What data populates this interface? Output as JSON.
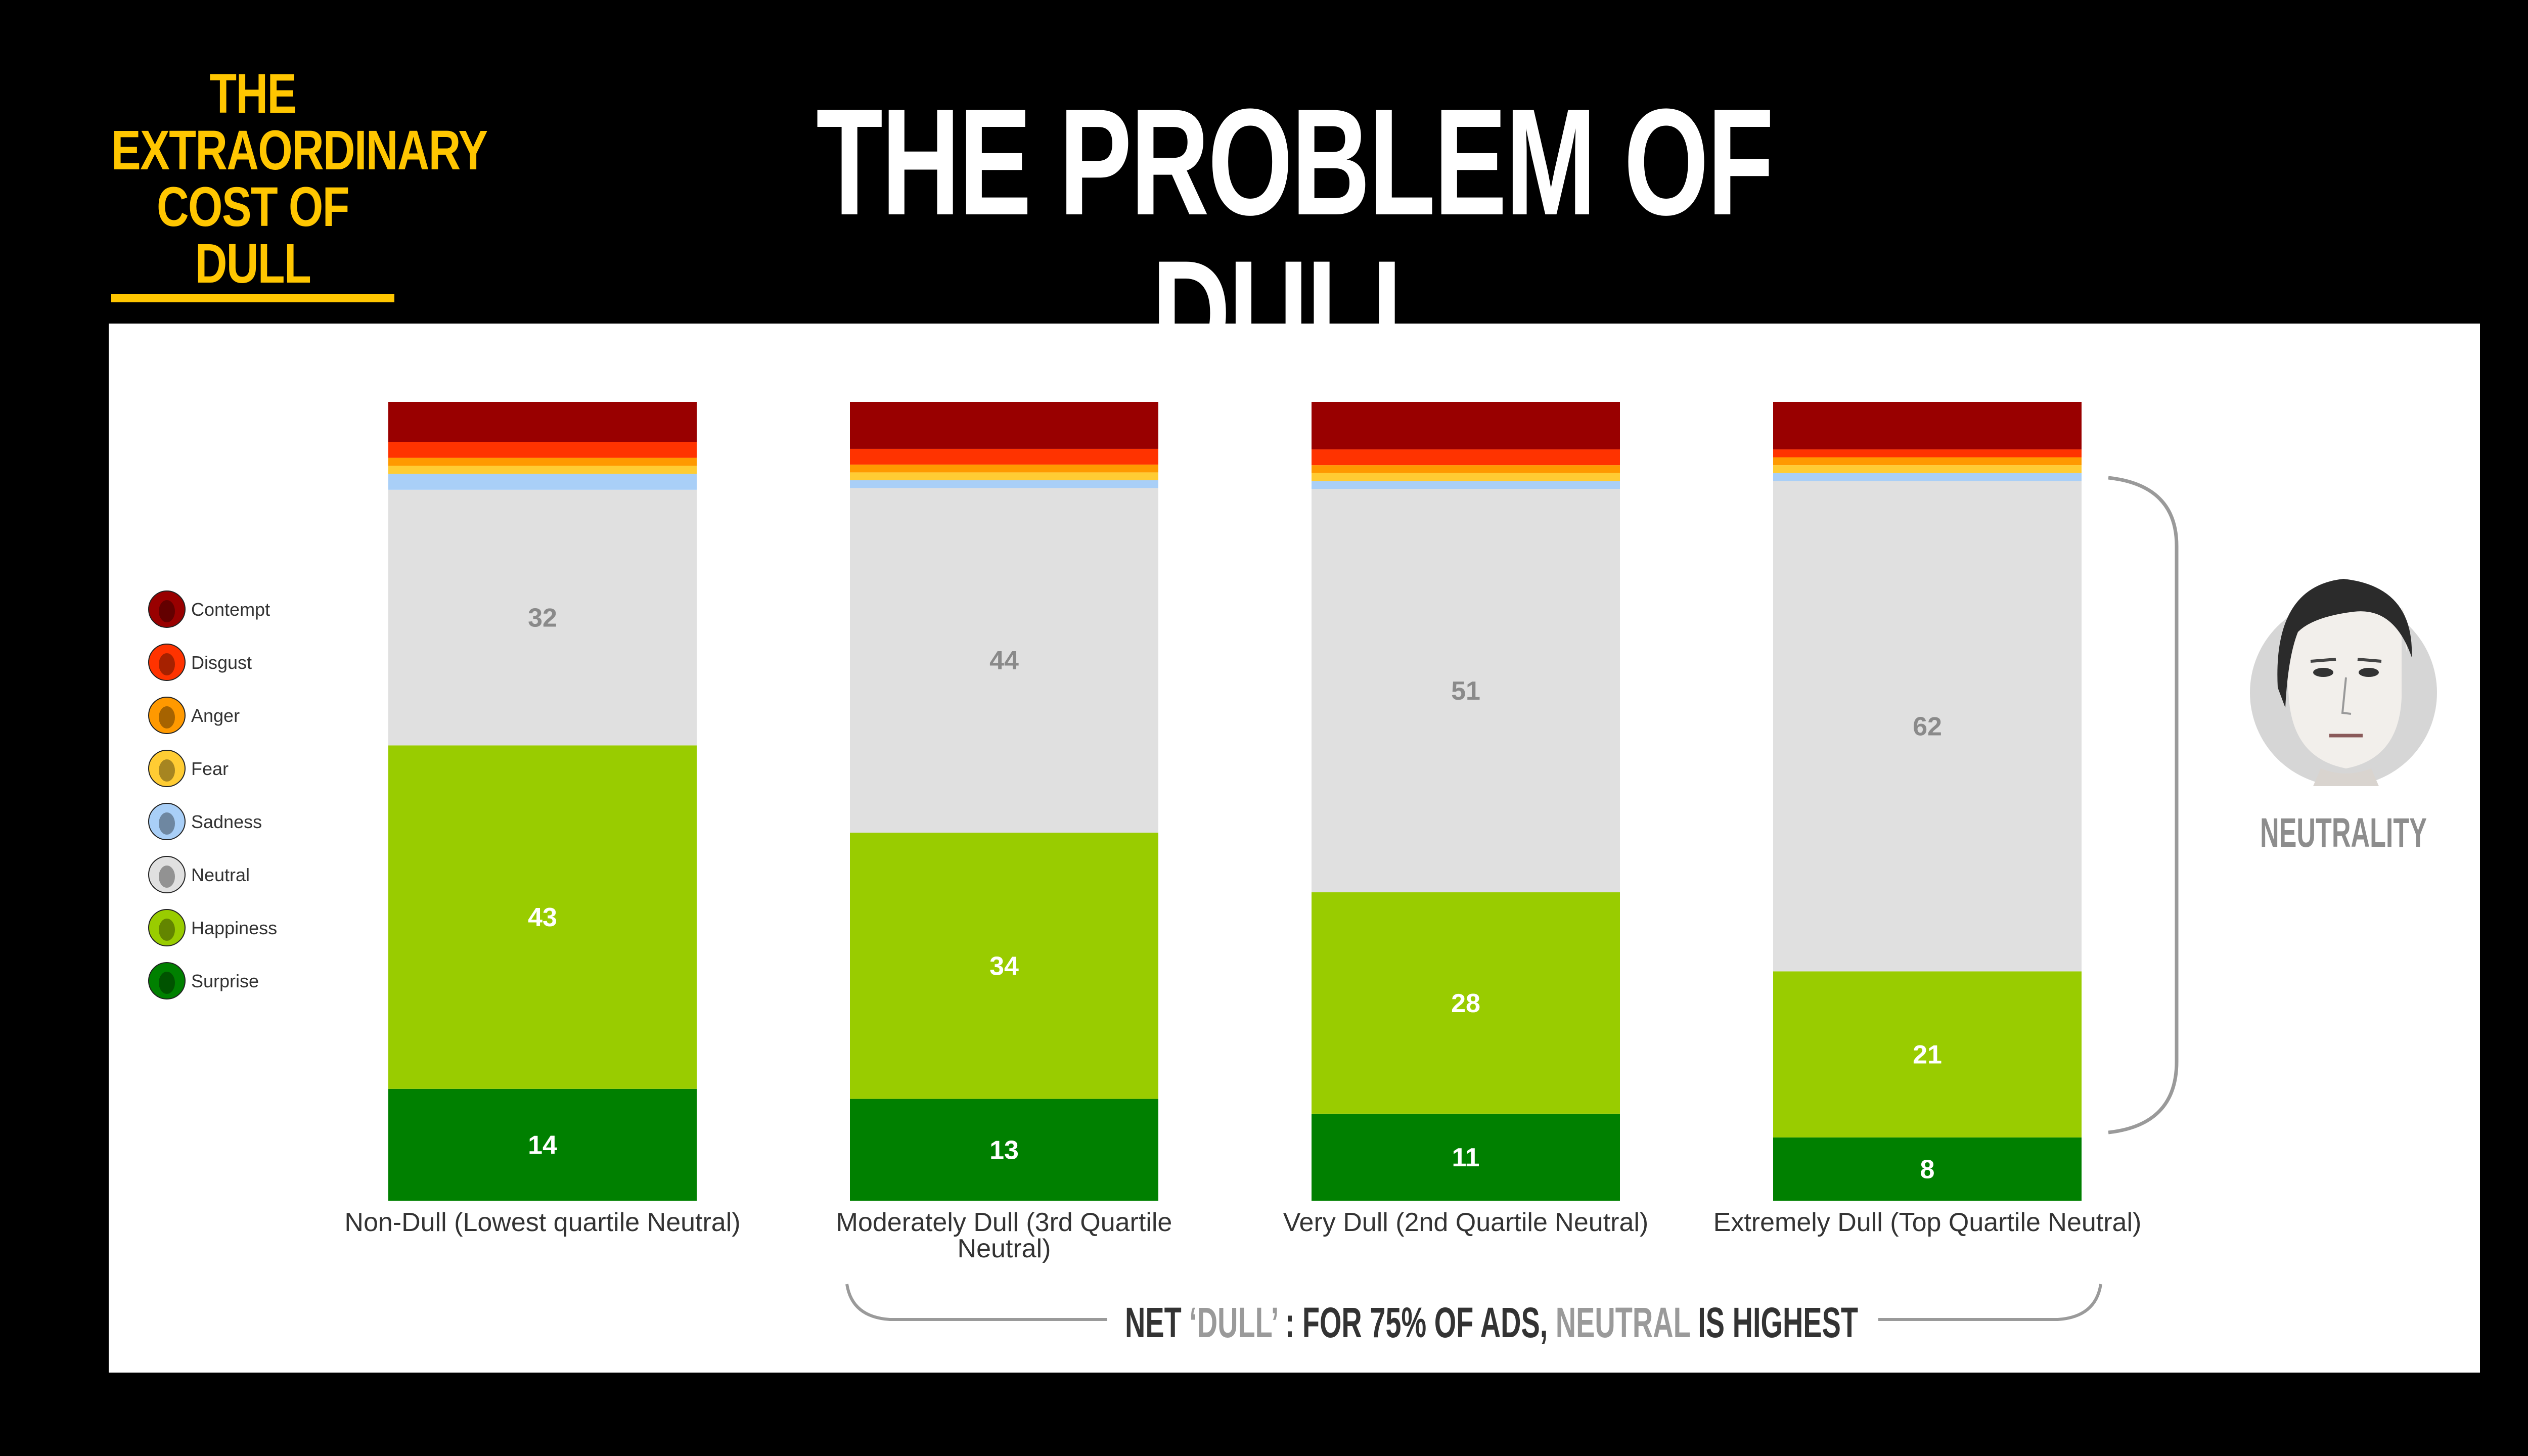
{
  "logo": {
    "line1": "THE",
    "line2": "EXTRAORDINARY",
    "line3": "COST OF DULL"
  },
  "title": "THE PROBLEM OF DULL",
  "colors": {
    "background": "#000000",
    "logo": "#ffc600",
    "contempt": "#990000",
    "disgust": "#ff3300",
    "anger": "#ff9900",
    "fear": "#ffcc33",
    "sadness": "#a9cff7",
    "neutral": "#e0e0e0",
    "happiness": "#99cc00",
    "surprise": "#008000"
  },
  "chart_data": {
    "type": "bar",
    "stacked": true,
    "orientation": "vertical",
    "categories": [
      "Non-Dull (Lowest quartile Neutral)",
      "Moderately Dull (3rd Quartile Neutral)",
      "Very Dull (2nd Quartile Neutral)",
      "Extremely Dull (Top Quartile Neutral)"
    ],
    "series": [
      {
        "name": "Surprise",
        "color": "#008000",
        "values": [
          14,
          13,
          11,
          8
        ],
        "labeled": true
      },
      {
        "name": "Happiness",
        "color": "#99cc00",
        "values": [
          43,
          34,
          28,
          21
        ],
        "labeled": true
      },
      {
        "name": "Neutral",
        "color": "#e0e0e0",
        "values": [
          32,
          44,
          51,
          62
        ],
        "labeled": true
      },
      {
        "name": "Sadness",
        "color": "#a9cff7",
        "values": [
          2,
          1,
          1,
          1
        ],
        "labeled": false
      },
      {
        "name": "Fear",
        "color": "#ffcc33",
        "values": [
          1,
          1,
          1,
          1
        ],
        "labeled": false
      },
      {
        "name": "Anger",
        "color": "#ff9900",
        "values": [
          1,
          1,
          1,
          1
        ],
        "labeled": false
      },
      {
        "name": "Disgust",
        "color": "#ff3300",
        "values": [
          2,
          2,
          2,
          1
        ],
        "labeled": false
      },
      {
        "name": "Contempt",
        "color": "#990000",
        "values": [
          5,
          6,
          6,
          6
        ],
        "labeled": false
      }
    ],
    "legend": {
      "position": "left",
      "entries": [
        "Contempt",
        "Disgust",
        "Anger",
        "Fear",
        "Sadness",
        "Neutral",
        "Happiness",
        "Surprise"
      ]
    },
    "ylim": [
      0,
      100
    ],
    "grid": false,
    "annotations": {
      "neutrality_label": "NEUTRALITY",
      "footer": {
        "part1": "NET ",
        "part2": "‘DULL’",
        "part3": " : FOR 75% OF ADS, ",
        "part4": "NEUTRAL",
        "part5": " IS HIGHEST"
      }
    }
  }
}
